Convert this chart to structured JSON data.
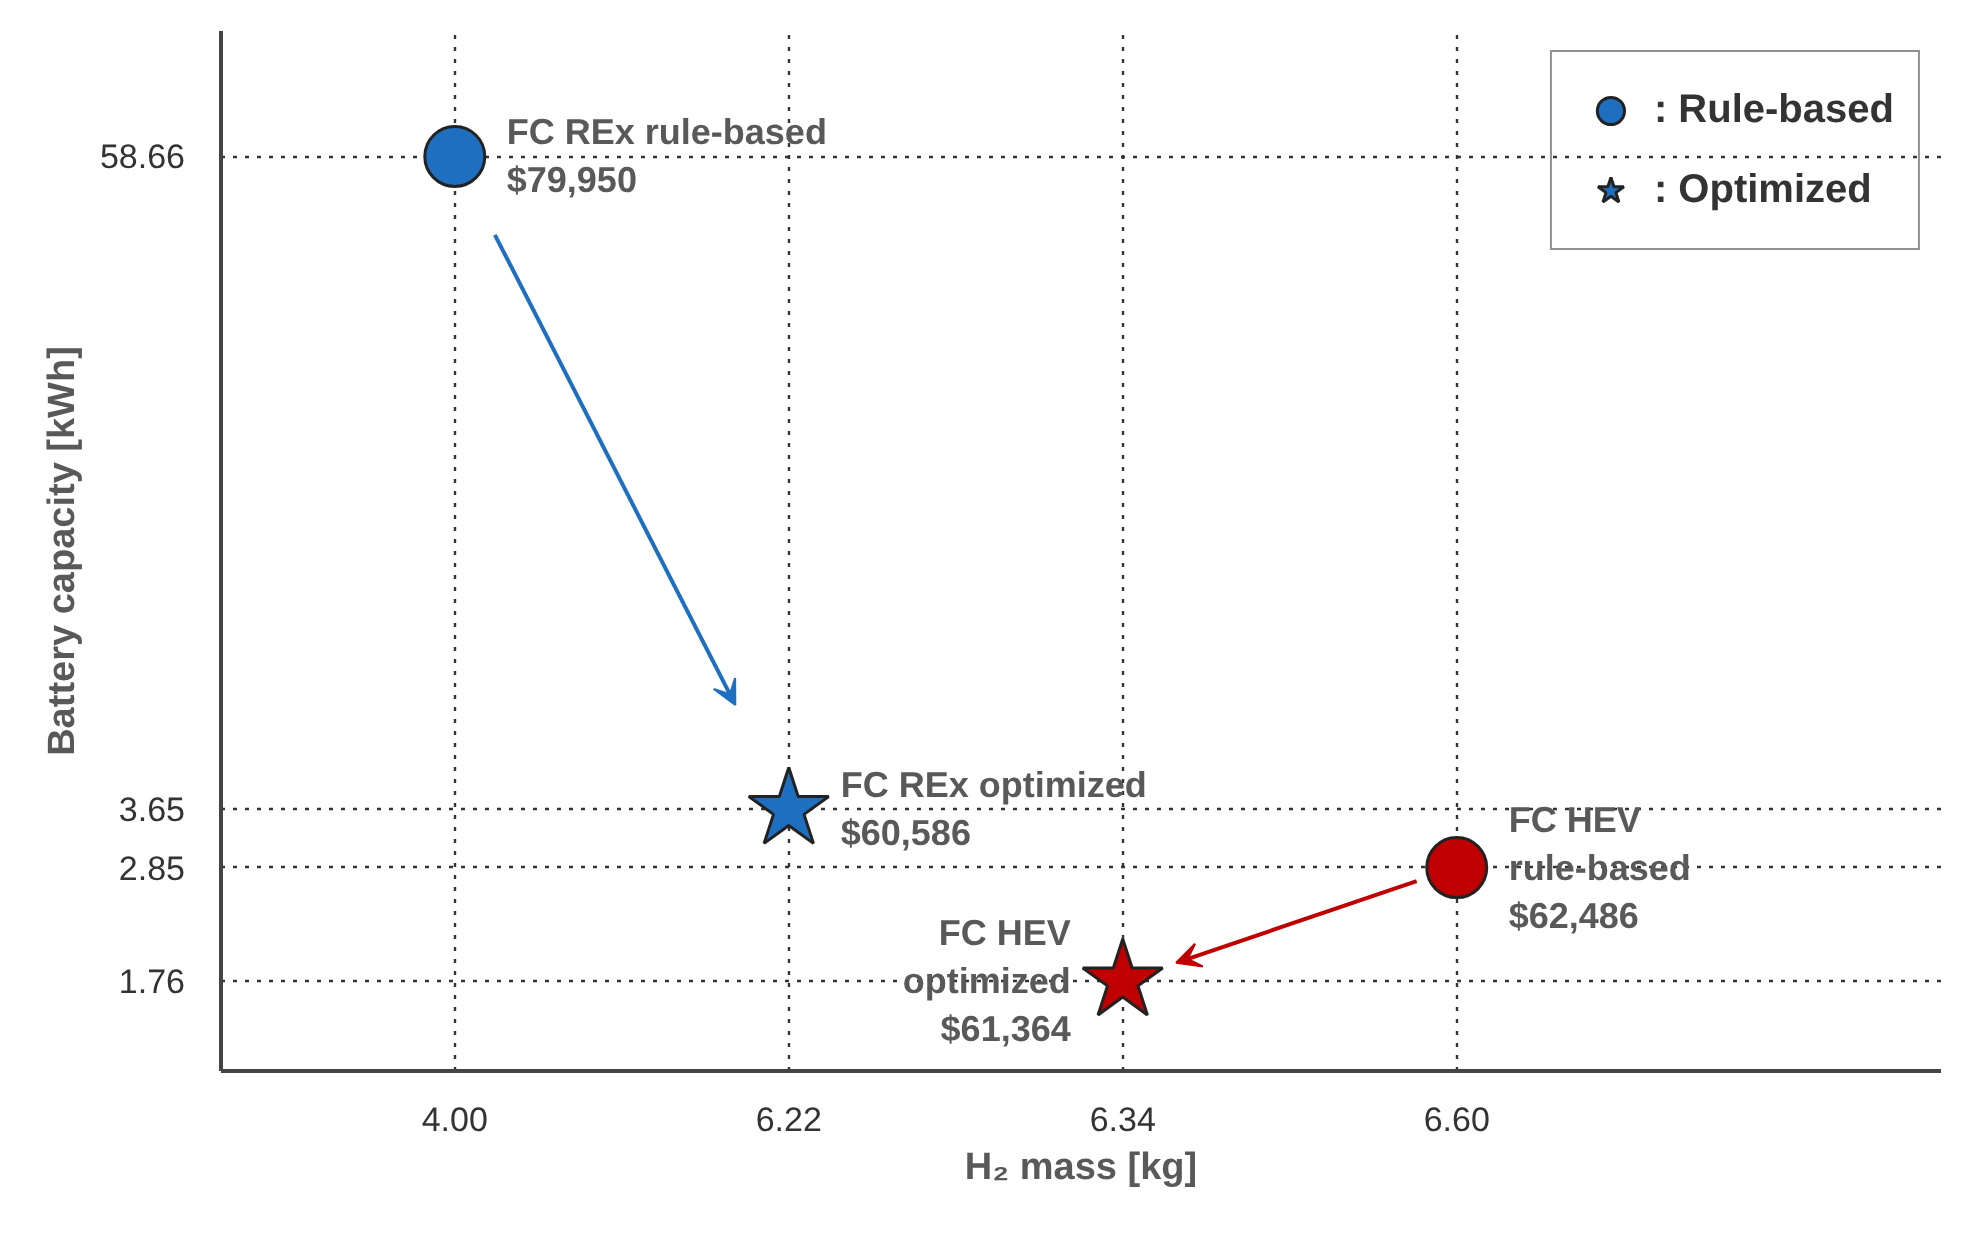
{
  "chart_data": {
    "type": "scatter",
    "categories": [
      "4.00",
      "6.22",
      "6.34",
      "6.60"
    ],
    "xlabel": "H₂ mass [kg]",
    "ylabel": "Battery capacity [kWh]",
    "log": "y",
    "ylim": [
      1.2,
      100
    ],
    "yticks": [
      1.76,
      2.85,
      3.65,
      58.66
    ],
    "grid": true,
    "legend": "top right",
    "series": [
      {
        "name": ": Rule-based",
        "marker": "circle",
        "x": [
          "4.00",
          "6.60"
        ],
        "values": [
          58.66,
          2.85
        ],
        "colors": [
          "#1f6fc0",
          "#c00000"
        ]
      },
      {
        "name": ": Optimized",
        "marker": "star",
        "x": [
          "6.22",
          "6.34"
        ],
        "values": [
          3.65,
          1.76
        ],
        "colors": [
          "#1f6fc0",
          "#c00000"
        ]
      }
    ],
    "annotations": [
      {
        "text": "FC REx rule-based\n$79,950",
        "x": "4.00",
        "y": 58.66
      },
      {
        "text": "FC REx optimized\n$60,586",
        "x": "6.22",
        "y": 3.65
      },
      {
        "text": "FC HEV\nrule-based\n$62,486",
        "x": "6.60",
        "y": 2.85
      },
      {
        "text": "FC HEV\noptimized\n$61,364",
        "x": "6.34",
        "y": 1.76
      }
    ]
  }
}
